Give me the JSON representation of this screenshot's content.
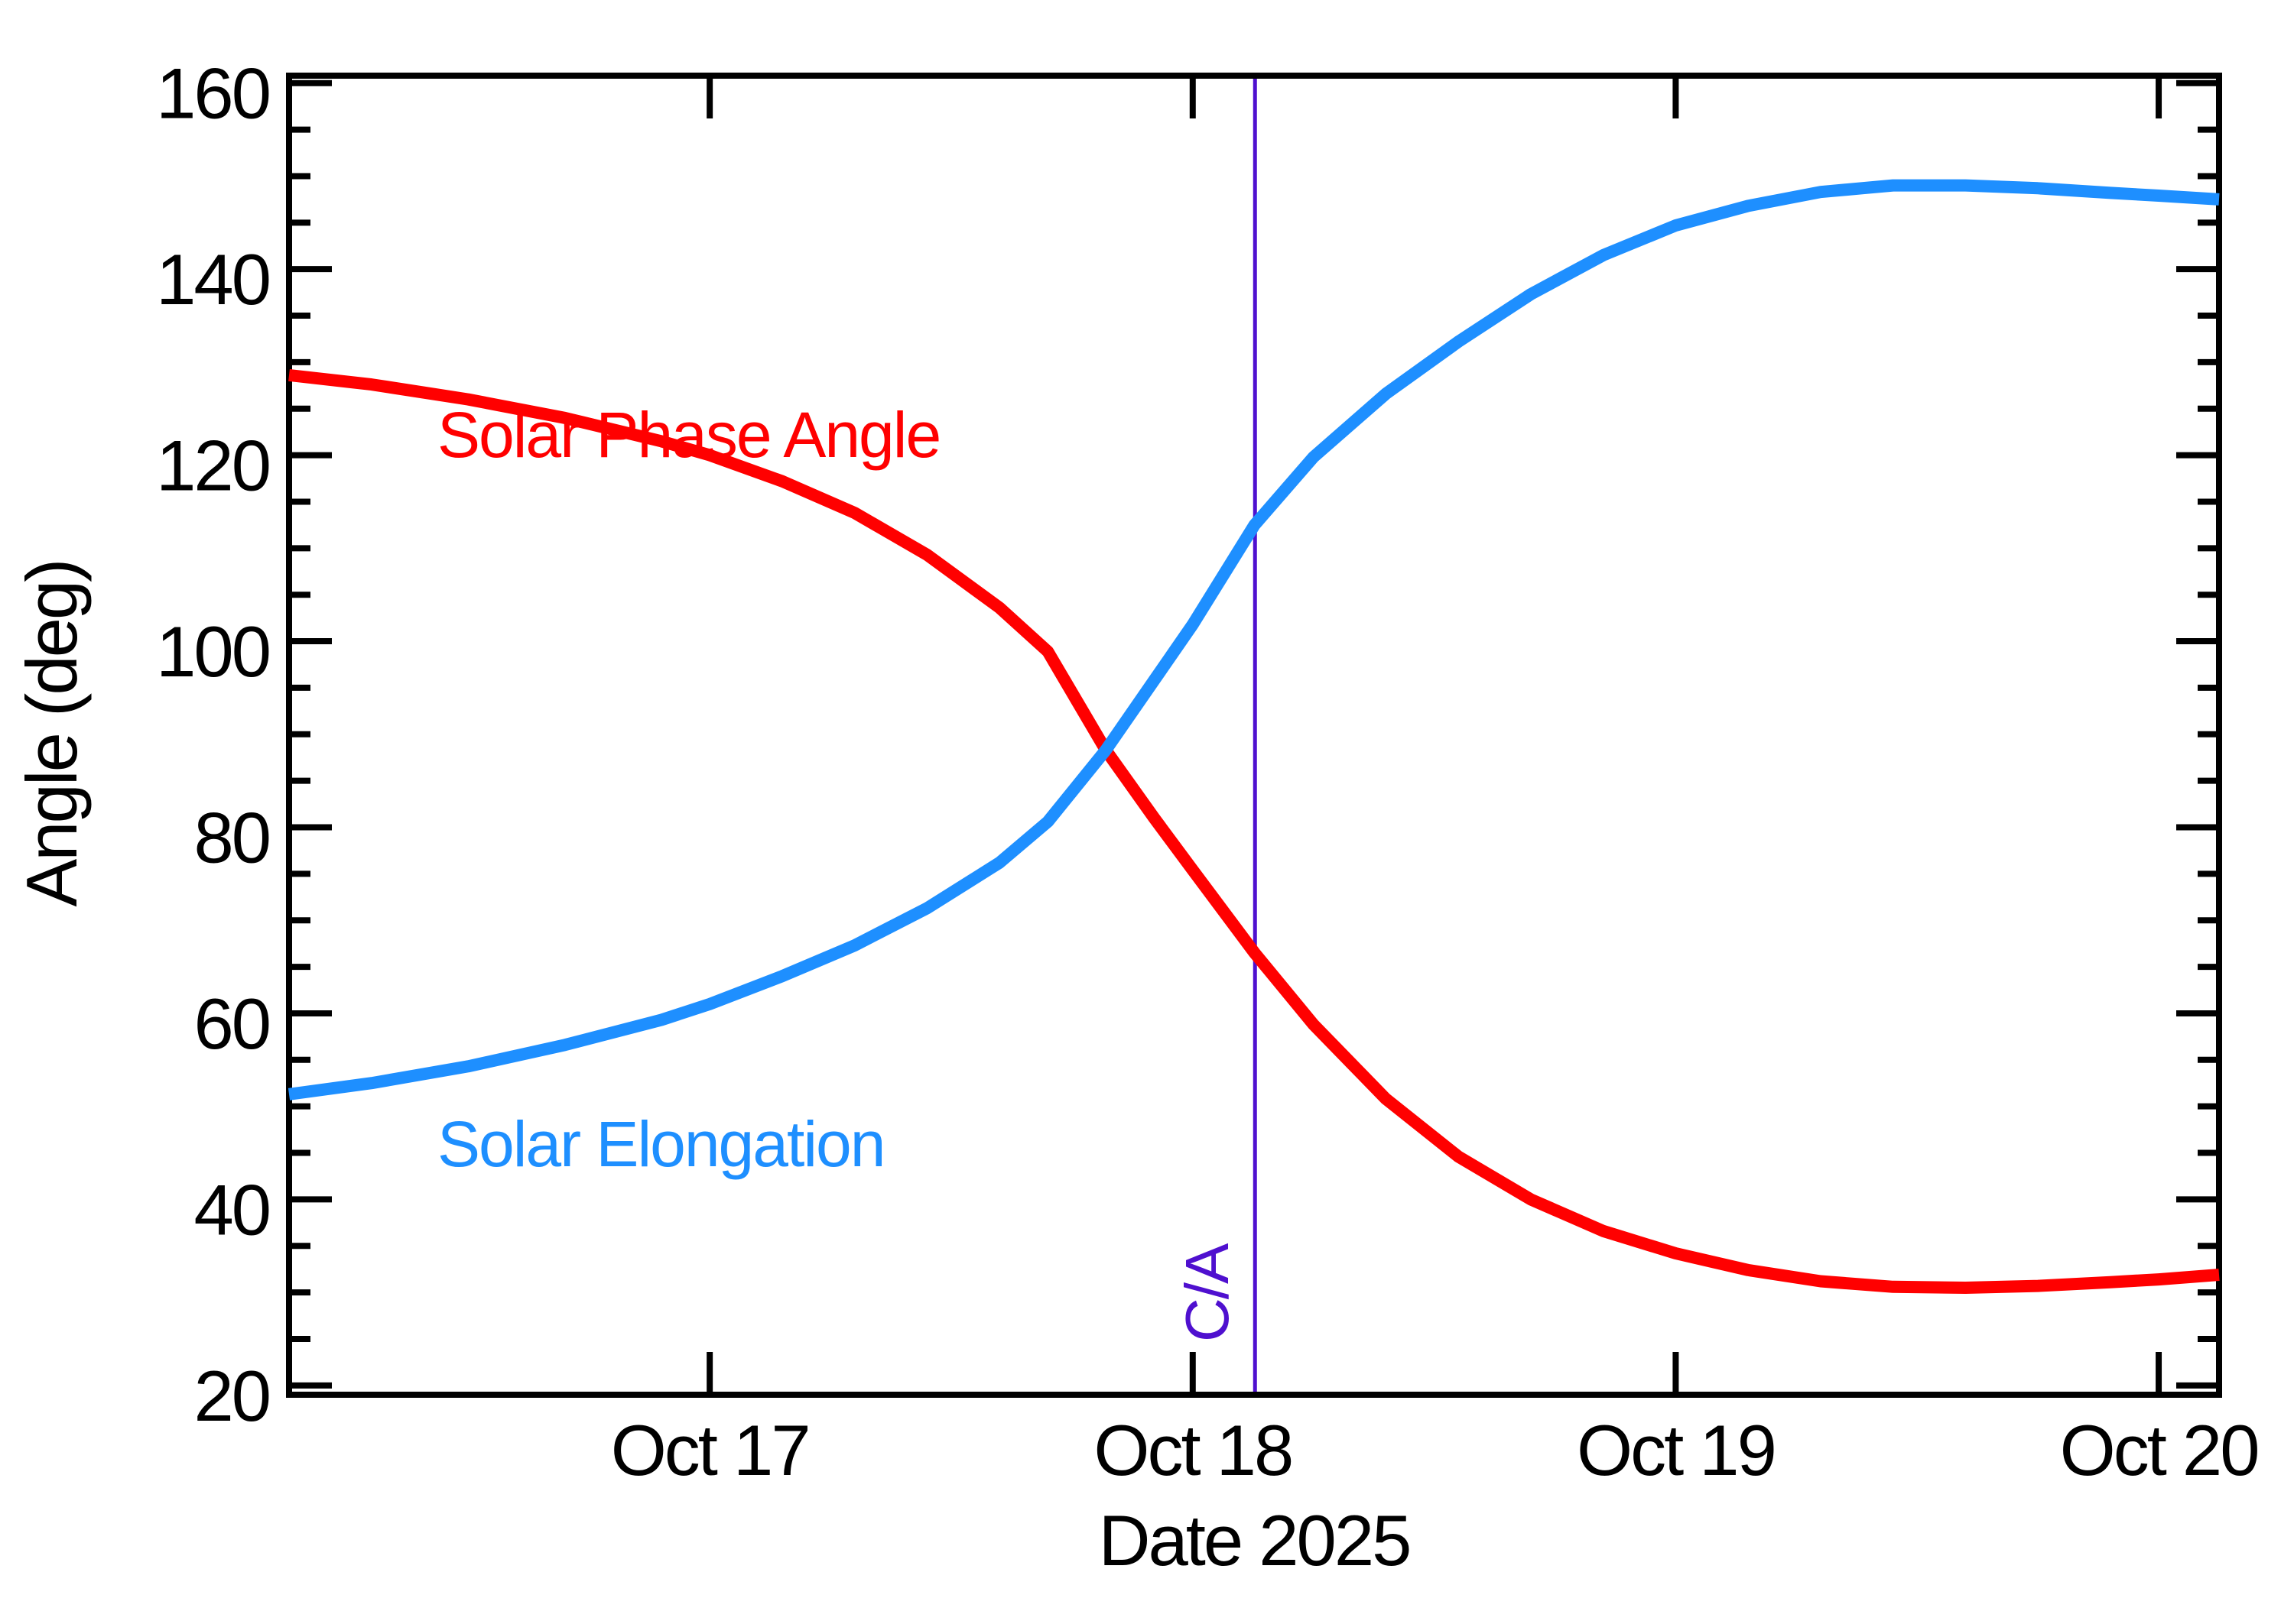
{
  "figure": {
    "background": "#ffffff",
    "xlabel": "Date 2025",
    "ylabel": "Angle (deg)",
    "ca_label": "C/A"
  },
  "colors": {
    "solar_phase_angle": "#ff0000",
    "solar_elongation": "#1e8fff",
    "close_approach_line": "#4f10cf",
    "axis": "#000000"
  },
  "chart_data": {
    "type": "line",
    "title": "",
    "xlabel": "Date 2025",
    "ylabel": "Angle (deg)",
    "x_unit": "days_from_Oct_17_2025_00h",
    "xlim": [
      -0.871,
      3.125
    ],
    "ylim": [
      19.0,
      160.8
    ],
    "grid": false,
    "legend": "inline-curve-labels",
    "x_major_ticks": [
      {
        "t": 0,
        "label": "Oct 17"
      },
      {
        "t": 1,
        "label": "Oct 18"
      },
      {
        "t": 2,
        "label": "Oct 19"
      },
      {
        "t": 3,
        "label": "Oct 20"
      }
    ],
    "y_major_ticks": [
      20,
      40,
      60,
      80,
      100,
      120,
      140,
      160
    ],
    "y_minor_step": 5,
    "x": [
      -0.871,
      -0.7,
      -0.5,
      -0.3,
      -0.1,
      0,
      0.15,
      0.3,
      0.45,
      0.6,
      0.7,
      0.82,
      0.92,
      1.0,
      1.128,
      1.25,
      1.4,
      1.55,
      1.7,
      1.85,
      2.0,
      2.15,
      2.3,
      2.45,
      2.6,
      2.75,
      2.9,
      3.0,
      3.125
    ],
    "series": [
      {
        "name": "Solar Phase Angle",
        "color": "#ff0000",
        "values": [
          128.6,
          127.6,
          126.0,
          124.0,
          121.5,
          120.0,
          117.2,
          113.8,
          109.3,
          103.6,
          98.9,
          88.3,
          81.0,
          75.4,
          66.5,
          58.8,
          50.8,
          44.6,
          40.0,
          36.6,
          34.2,
          32.4,
          31.2,
          30.6,
          30.5,
          30.7,
          31.1,
          31.4,
          31.9
        ]
      },
      {
        "name": "Solar Elongation",
        "color": "#1e8fff",
        "values": [
          51.3,
          52.5,
          54.3,
          56.6,
          59.3,
          61.0,
          64.0,
          67.3,
          71.3,
          76.2,
          80.6,
          88.3,
          95.8,
          101.8,
          112.5,
          119.8,
          126.6,
          132.2,
          137.3,
          141.5,
          144.7,
          146.8,
          148.3,
          149.0,
          149.0,
          148.7,
          148.2,
          147.9,
          147.5
        ]
      }
    ],
    "annotations": [
      {
        "type": "vline",
        "t": 1.129,
        "label": "C/A",
        "color": "#4f10cf"
      }
    ]
  }
}
